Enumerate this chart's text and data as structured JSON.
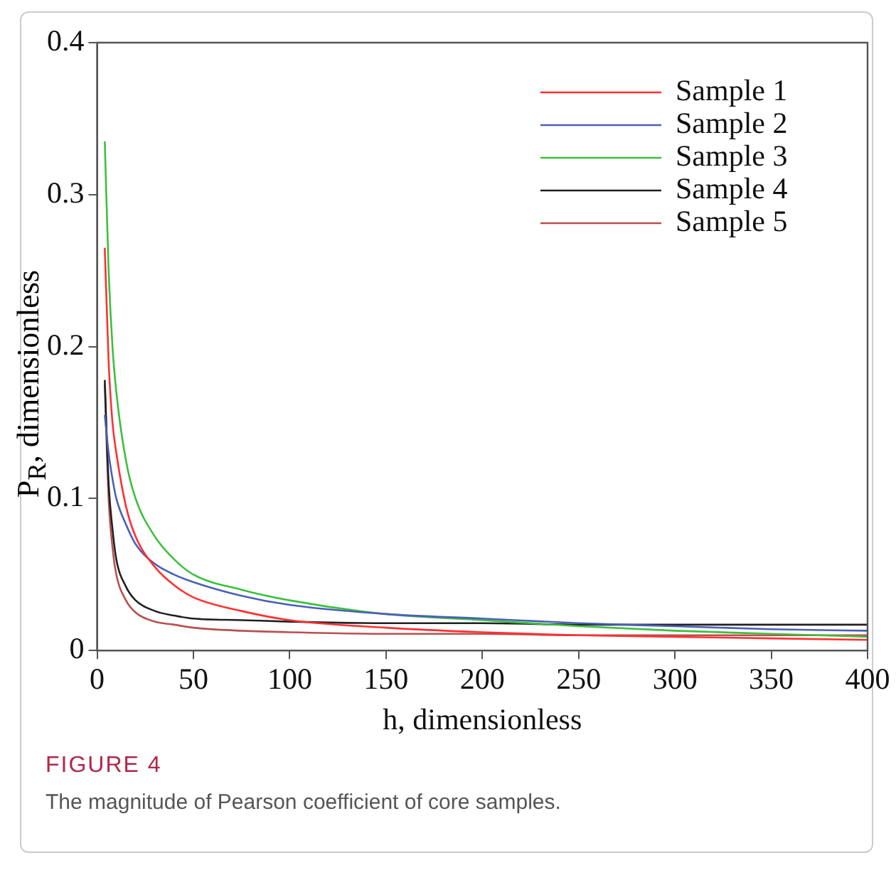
{
  "chart_data": {
    "type": "line",
    "xlabel": "h, dimensionless",
    "ylabel": "P$_{R}$, dimensionless",
    "annotations": [
      "FIGURE 4",
      "The magnitude of Pearson coefficient of core samples."
    ],
    "xlim": [
      0,
      400
    ],
    "xticks": [
      0,
      50,
      100,
      150,
      200,
      250,
      300,
      350,
      400
    ],
    "ylim": [
      0,
      0.4
    ],
    "yticks": [
      0,
      0.1,
      0.2,
      0.3,
      0.4
    ],
    "grid": false,
    "legend": "top right",
    "marker": "none",
    "line_style": "solid",
    "x": [
      4,
      6,
      8,
      10,
      15,
      20,
      30,
      40,
      50,
      75,
      100,
      150,
      200,
      250,
      300,
      350,
      400
    ],
    "series": [
      {
        "name": "Sample 1",
        "color": "#ff3030",
        "values": [
          0.265,
          0.19,
          0.15,
          0.13,
          0.095,
          0.075,
          0.055,
          0.043,
          0.035,
          0.026,
          0.02,
          0.015,
          0.012,
          0.01,
          0.009,
          0.008,
          0.007
        ]
      },
      {
        "name": "Sample 2",
        "color": "#4a5fb8",
        "values": [
          0.155,
          0.13,
          0.113,
          0.1,
          0.083,
          0.07,
          0.057,
          0.05,
          0.045,
          0.036,
          0.03,
          0.024,
          0.021,
          0.018,
          0.016,
          0.014,
          0.013
        ]
      },
      {
        "name": "Sample 3",
        "color": "#3cc03c",
        "values": [
          0.335,
          0.25,
          0.2,
          0.17,
          0.125,
          0.1,
          0.075,
          0.06,
          0.05,
          0.04,
          0.033,
          0.024,
          0.02,
          0.016,
          0.013,
          0.011,
          0.009
        ]
      },
      {
        "name": "Sample 4",
        "color": "#202020",
        "values": [
          0.178,
          0.11,
          0.08,
          0.06,
          0.042,
          0.033,
          0.026,
          0.023,
          0.021,
          0.02,
          0.019,
          0.018,
          0.018,
          0.017,
          0.017,
          0.017,
          0.017
        ]
      },
      {
        "name": "Sample 5",
        "color": "#b85050",
        "values": [
          0.175,
          0.1,
          0.068,
          0.05,
          0.033,
          0.025,
          0.019,
          0.017,
          0.015,
          0.013,
          0.012,
          0.011,
          0.011,
          0.01,
          0.01,
          0.01,
          0.01
        ]
      }
    ]
  }
}
